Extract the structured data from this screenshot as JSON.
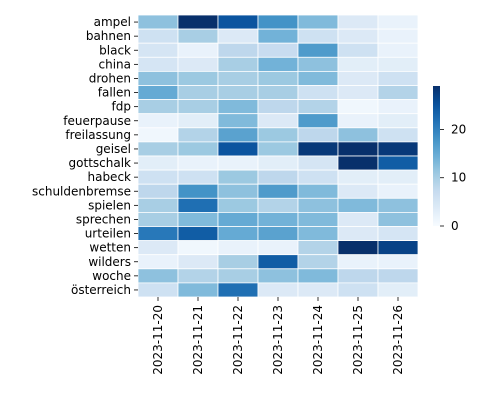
{
  "chart_data": {
    "type": "heatmap",
    "rows": [
      "ampel",
      "bahnen",
      "black",
      "china",
      "drohen",
      "fallen",
      "fdp",
      "feuerpause",
      "freilassung",
      "geisel",
      "gottschalk",
      "habeck",
      "schuldenbremse",
      "spielen",
      "sprechen",
      "urteilen",
      "wetten",
      "wilders",
      "woche",
      "österreich"
    ],
    "columns": [
      "2023-11-20",
      "2023-11-21",
      "2023-11-22",
      "2023-11-23",
      "2023-11-24",
      "2023-11-25",
      "2023-11-26"
    ],
    "values": [
      [
        12,
        29,
        25,
        18,
        13,
        4,
        2
      ],
      [
        6,
        10,
        4,
        14,
        6,
        4,
        2
      ],
      [
        5,
        2,
        8,
        7,
        17,
        6,
        2
      ],
      [
        5,
        4,
        10,
        14,
        12,
        3,
        3
      ],
      [
        12,
        11,
        10,
        11,
        13,
        4,
        6
      ],
      [
        15,
        10,
        10,
        10,
        6,
        4,
        9
      ],
      [
        10,
        10,
        13,
        8,
        9,
        1,
        2
      ],
      [
        2,
        3,
        13,
        4,
        17,
        2,
        3
      ],
      [
        1,
        9,
        16,
        11,
        8,
        12,
        6
      ],
      [
        10,
        11,
        25,
        11,
        28,
        29,
        28
      ],
      [
        3,
        2,
        2,
        3,
        5,
        29,
        24
      ],
      [
        6,
        6,
        11,
        8,
        6,
        3,
        3
      ],
      [
        8,
        18,
        12,
        17,
        13,
        4,
        2
      ],
      [
        10,
        22,
        11,
        9,
        12,
        13,
        12
      ],
      [
        10,
        13,
        15,
        14,
        13,
        4,
        12
      ],
      [
        21,
        24,
        15,
        16,
        13,
        4,
        5
      ],
      [
        4,
        1,
        2,
        2,
        9,
        29,
        27
      ],
      [
        2,
        4,
        10,
        24,
        9,
        2,
        2
      ],
      [
        12,
        9,
        10,
        12,
        13,
        8,
        8
      ],
      [
        6,
        13,
        22,
        4,
        4,
        6,
        3
      ]
    ],
    "colorbar": {
      "min": 0,
      "max": 29,
      "ticks": [
        0,
        10,
        20
      ],
      "colormap": "Blues"
    },
    "grid": true,
    "cell_border_color": "#ffffff",
    "legend": "colorbar right"
  }
}
